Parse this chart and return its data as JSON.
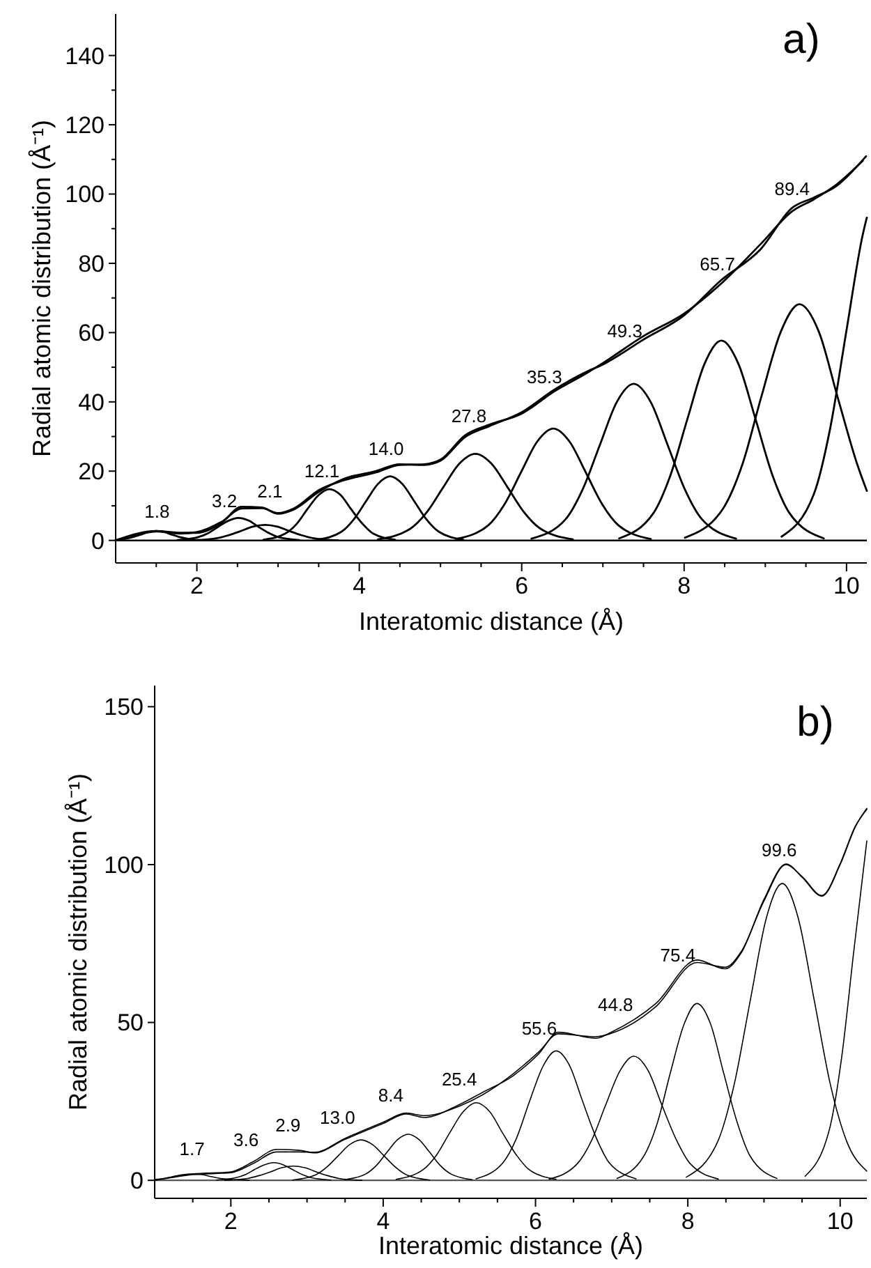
{
  "chart_data": [
    {
      "type": "line",
      "title": "a)",
      "xlabel": "Interatomic distance (Å)",
      "ylabel": "Radial atomic distribution (Å⁻¹)",
      "xlim": [
        1.0,
        10.25
      ],
      "ylim": [
        -6.5,
        152
      ],
      "xticks": [
        {
          "value": 1.5,
          "label": null
        },
        2,
        {
          "value": 2.5,
          "label": null
        },
        {
          "value": 3,
          "label": null
        },
        {
          "value": 3.5,
          "label": null
        },
        4,
        {
          "value": 4.5,
          "label": null
        },
        {
          "value": 5,
          "label": null
        },
        {
          "value": 5.5,
          "label": null
        },
        6,
        {
          "value": 6.5,
          "label": null
        },
        {
          "value": 7,
          "label": null
        },
        {
          "value": 7.5,
          "label": null
        },
        8,
        {
          "value": 8.5,
          "label": null
        },
        {
          "value": 9,
          "label": null
        },
        {
          "value": 9.5,
          "label": null
        },
        10
      ],
      "yticks": [
        0,
        {
          "value": 10,
          "label": null
        },
        20,
        {
          "value": 30,
          "label": null
        },
        40,
        {
          "value": 50,
          "label": null
        },
        60,
        {
          "value": 70,
          "label": null
        },
        80,
        {
          "value": 90,
          "label": null
        },
        100,
        {
          "value": 110,
          "label": null
        },
        120,
        {
          "value": 130,
          "label": null
        },
        140
      ],
      "ref_lines": [
        {
          "axis": "y",
          "value": 0,
          "color": "#000000"
        }
      ],
      "series": [
        {
          "color": "#000000",
          "x": [
            1.0,
            1.5,
            1.8,
            2.0,
            2.3,
            2.55,
            2.8,
            3.0,
            3.2,
            3.5,
            3.8,
            4.2,
            4.5,
            4.8,
            5.0,
            5.3,
            5.6,
            6.0,
            6.4,
            6.8,
            7.0,
            7.5,
            8.0,
            8.45,
            8.94,
            9.33,
            9.6,
            9.88,
            10.24
          ],
          "values": [
            0,
            2.7,
            2.2,
            2.2,
            5,
            9.7,
            9.5,
            7.7,
            9,
            14,
            17.7,
            20,
            22,
            21.8,
            23,
            29.8,
            33,
            37,
            43.5,
            48.7,
            50.8,
            58,
            65,
            75,
            84,
            96,
            99,
            102.4,
            110.9
          ]
        },
        {
          "color": "#000000",
          "x": [
            1.2,
            1.5,
            1.8,
            2.0,
            2.3,
            2.55,
            2.8,
            3.0,
            3.2,
            3.5,
            3.8,
            4.2,
            4.5,
            4.8,
            5.0,
            5.3,
            5.6,
            6.0,
            6.4,
            6.8,
            7.0,
            7.5,
            8.0,
            8.45,
            8.94,
            9.33,
            9.6,
            9.88,
            10.2
          ],
          "values": [
            1.2,
            2.6,
            2.0,
            2.4,
            5.3,
            9.2,
            9.3,
            7.9,
            9.3,
            14.5,
            17.3,
            19.6,
            21.8,
            22.0,
            23.3,
            30.3,
            33.4,
            36.6,
            43.0,
            48.3,
            51.2,
            59.0,
            65.5,
            74.0,
            85.5,
            95.0,
            98.5,
            102.8,
            109.6
          ]
        },
        {
          "color": "#000000",
          "x": [
            1.0,
            1.1,
            1.2,
            1.3,
            1.4,
            1.5,
            1.6,
            1.7,
            1.8,
            1.9,
            2.1
          ],
          "values": [
            0.1,
            0.4,
            0.9,
            1.6,
            2.4,
            2.7,
            2.4,
            1.6,
            0.9,
            0.4,
            0.0
          ]
        },
        {
          "color": "#000000",
          "x": [
            1.76,
            2.01,
            2.14,
            2.26,
            2.39,
            2.51,
            2.64,
            2.76,
            2.89,
            3.01,
            3.26
          ],
          "values": [
            0.1,
            0.9,
            2.1,
            3.9,
            5.7,
            6.5,
            5.7,
            3.9,
            2.1,
            0.9,
            0.1
          ]
        },
        {
          "color": "#000000",
          "x": [
            1.94,
            2.24,
            2.39,
            2.54,
            2.69,
            2.84,
            2.99,
            3.14,
            3.29,
            3.44,
            3.74
          ],
          "values": [
            0.0,
            0.6,
            1.5,
            2.7,
            4.0,
            4.5,
            4.0,
            2.7,
            1.5,
            0.6,
            0.0
          ]
        },
        {
          "color": "#000000",
          "x": [
            2.82,
            3.09,
            3.23,
            3.36,
            3.5,
            3.63,
            3.77,
            3.9,
            4.04,
            4.17,
            4.44
          ],
          "values": [
            0.2,
            2.0,
            4.8,
            9.0,
            13.1,
            14.8,
            13.1,
            9.0,
            4.8,
            2.0,
            0.2
          ]
        },
        {
          "color": "#000000",
          "x": [
            3.48,
            3.78,
            3.93,
            4.08,
            4.23,
            4.38,
            4.53,
            4.68,
            4.83,
            4.98,
            5.28
          ],
          "values": [
            0.2,
            2.5,
            6.0,
            11.2,
            16.3,
            18.5,
            16.3,
            11.2,
            6.0,
            2.5,
            0.2
          ]
        },
        {
          "color": "#000000",
          "x": [
            4.23,
            4.63,
            4.83,
            5.03,
            5.23,
            5.43,
            5.63,
            5.83,
            6.03,
            6.23,
            6.63
          ],
          "values": [
            0.3,
            3.4,
            8.1,
            15.2,
            22.1,
            25,
            22.1,
            15.2,
            8.1,
            3.4,
            0.3
          ]
        },
        {
          "color": "#000000",
          "x": [
            5.19,
            5.59,
            5.79,
            5.99,
            6.19,
            6.39,
            6.59,
            6.79,
            6.99,
            7.19,
            7.59
          ],
          "values": [
            0.4,
            4.4,
            10.5,
            19.6,
            28.5,
            32.3,
            28.5,
            19.6,
            10.5,
            4.4,
            0.4
          ]
        },
        {
          "color": "#000000",
          "x": [
            6.12,
            6.54,
            6.75,
            6.96,
            7.17,
            7.38,
            7.59,
            7.8,
            8.01,
            8.22,
            8.64
          ],
          "values": [
            0.5,
            6.1,
            14.7,
            27.4,
            39.9,
            45.2,
            39.9,
            27.4,
            14.7,
            6.1,
            0.5
          ]
        },
        {
          "color": "#000000",
          "x": [
            7.2,
            7.62,
            7.83,
            8.04,
            8.25,
            8.46,
            8.67,
            8.88,
            9.09,
            9.3,
            9.72
          ],
          "values": [
            0.6,
            7.8,
            18.7,
            35.0,
            50.9,
            57.7,
            50.9,
            35.0,
            18.7,
            7.8,
            0.6
          ]
        },
        {
          "color": "#000000",
          "x": [
            8.01,
            8.48,
            8.72,
            8.95,
            9.19,
            9.42,
            9.66,
            9.89,
            10.13,
            10.25
          ],
          "values": [
            0.8,
            9.2,
            22.1,
            41.4,
            60.2,
            68.2,
            60.2,
            41.4,
            22.1,
            14.3
          ]
        },
        {
          "color": "#000000",
          "x": [
            9.2,
            9.6,
            9.8,
            10.0,
            10.2,
            10.25
          ],
          "values": [
            1.1,
            13.5,
            32.5,
            60.7,
            88.3,
            93.2
          ]
        }
      ],
      "annotations": [
        {
          "text": "1.8",
          "x": 1.51,
          "y": 2.7
        },
        {
          "text": "3.2",
          "x": 2.34,
          "y": 5.75
        },
        {
          "text": "2.1",
          "x": 2.9,
          "y": 8.6
        },
        {
          "text": "12.1",
          "x": 3.54,
          "y": 14.5
        },
        {
          "text": "14.0",
          "x": 4.33,
          "y": 20.9
        },
        {
          "text": "27.8",
          "x": 5.35,
          "y": 30.3
        },
        {
          "text": "35.3",
          "x": 6.28,
          "y": 41.6
        },
        {
          "text": "49.3",
          "x": 7.27,
          "y": 54.8
        },
        {
          "text": "65.7",
          "x": 8.41,
          "y": 74.1
        },
        {
          "text": "89.4",
          "x": 9.33,
          "y": 96
        }
      ]
    },
    {
      "type": "line",
      "title": "b)",
      "xlabel": "Interatomic distance (Å)",
      "ylabel": "Radial atomic distribution (Å⁻¹)",
      "xlim": [
        1.0,
        10.35
      ],
      "ylim": [
        -5.7,
        156.7
      ],
      "xticks": [
        {
          "value": 1.5,
          "label": null
        },
        2,
        {
          "value": 2.5,
          "label": null
        },
        {
          "value": 3,
          "label": null
        },
        {
          "value": 3.5,
          "label": null
        },
        4,
        {
          "value": 4.5,
          "label": null
        },
        {
          "value": 5,
          "label": null
        },
        {
          "value": 5.5,
          "label": null
        },
        6,
        {
          "value": 6.5,
          "label": null
        },
        {
          "value": 7,
          "label": null
        },
        {
          "value": 7.5,
          "label": null
        },
        8,
        {
          "value": 8.5,
          "label": null
        },
        {
          "value": 9,
          "label": null
        },
        {
          "value": 9.5,
          "label": null
        },
        10
      ],
      "yticks": [
        0,
        50,
        100,
        150
      ],
      "ref_lines": [
        {
          "axis": "y",
          "value": 0,
          "color": "#555555"
        }
      ],
      "series": [
        {
          "color": "#000000",
          "x": [
            1.0,
            1.5,
            2.0,
            2.3,
            2.6,
            2.9,
            3.1,
            3.5,
            4.0,
            4.3,
            4.54,
            5.0,
            5.3,
            5.7,
            6.04,
            6.3,
            6.8,
            7.0,
            7.58,
            8.12,
            8.49,
            8.7,
            9.0,
            9.29,
            9.5,
            9.76,
            10.0,
            10.2,
            10.35
          ],
          "values": [
            0,
            2,
            2.7,
            6,
            9.8,
            9.5,
            8.7,
            13,
            18,
            21,
            19.9,
            24,
            27.8,
            33,
            40,
            46.9,
            45,
            47,
            56,
            69.8,
            67,
            72,
            89,
            100.2,
            96,
            90,
            100,
            112,
            117.8
          ]
        },
        {
          "color": "#000000",
          "x": [
            1.0,
            1.5,
            2.0,
            2.3,
            2.6,
            2.9,
            3.1,
            3.5,
            4.0,
            4.3,
            4.54,
            5.0,
            5.3,
            5.7,
            6.04,
            6.3,
            6.8,
            7.0,
            7.58,
            8.12,
            8.49,
            8.7,
            9.0,
            9.29,
            9.5,
            9.76,
            10.0,
            10.2,
            10.35
          ],
          "values": [
            0,
            1.8,
            2.4,
            5.4,
            9.0,
            9.0,
            8.9,
            13.3,
            18.4,
            21.3,
            20.5,
            23.5,
            27.0,
            33.6,
            40.6,
            46.4,
            45.5,
            46.6,
            55,
            69,
            67.5,
            72.4,
            88.5,
            100,
            96.2,
            90.2,
            100.3,
            112.2,
            117.5
          ]
        },
        {
          "color": "#000000",
          "x": [
            1.0,
            1.12,
            1.24,
            1.37,
            1.49,
            1.62,
            1.74,
            1.87,
            1.99,
            2.24
          ],
          "values": [
            0.3,
            0.6,
            1.2,
            1.8,
            2,
            1.8,
            1.2,
            0.6,
            0.3,
            0.0
          ]
        },
        {
          "color": "#000000",
          "x": [
            1.81,
            2.06,
            2.19,
            2.31,
            2.44,
            2.56,
            2.69,
            2.81,
            2.94,
            3.06,
            3.31
          ],
          "values": [
            0.1,
            0.8,
            1.8,
            3.4,
            4.9,
            5.6,
            4.9,
            3.4,
            1.8,
            0.8,
            0.1
          ]
        },
        {
          "color": "#000000",
          "x": [
            1.92,
            2.22,
            2.37,
            2.52,
            2.67,
            2.82,
            2.97,
            3.12,
            3.27,
            3.42,
            3.72
          ],
          "values": [
            0.0,
            0.6,
            1.5,
            2.7,
            4.0,
            4.5,
            4.0,
            2.7,
            1.5,
            0.6,
            0.0
          ]
        },
        {
          "color": "#000000",
          "x": [
            2.81,
            3.11,
            3.26,
            3.41,
            3.56,
            3.71,
            3.86,
            4.01,
            4.16,
            4.31,
            4.61
          ],
          "values": [
            0.1,
            1.7,
            4.2,
            7.8,
            11.3,
            12.8,
            11.3,
            7.8,
            4.2,
            1.7,
            0.1
          ]
        },
        {
          "color": "#000000",
          "x": [
            3.49,
            3.77,
            3.91,
            4.05,
            4.19,
            4.33,
            4.47,
            4.61,
            4.75,
            4.89,
            5.17
          ],
          "values": [
            0.2,
            2.0,
            4.7,
            8.9,
            12.9,
            14.6,
            12.9,
            8.9,
            4.7,
            2.0,
            0.2
          ]
        },
        {
          "color": "#000000",
          "x": [
            4.17,
            4.52,
            4.7,
            4.87,
            5.05,
            5.22,
            5.4,
            5.57,
            5.75,
            5.92,
            6.27
          ],
          "values": [
            0.3,
            3.3,
            8.0,
            14.9,
            21.7,
            24.6,
            21.7,
            14.9,
            8.0,
            3.3,
            0.3
          ]
        },
        {
          "color": "#000000",
          "x": [
            5.22,
            5.57,
            5.75,
            5.92,
            6.1,
            6.27,
            6.45,
            6.62,
            6.8,
            6.97,
            7.32
          ],
          "values": [
            0.5,
            5.5,
            13.3,
            24.9,
            36.2,
            41,
            36.2,
            24.9,
            13.3,
            5.5,
            0.5
          ]
        },
        {
          "color": "#000000",
          "x": [
            6.18,
            6.55,
            6.74,
            6.92,
            7.11,
            7.29,
            7.48,
            7.66,
            7.85,
            8.03,
            8.4
          ],
          "values": [
            0.4,
            5.3,
            12.8,
            23.8,
            34.7,
            39.3,
            34.7,
            23.8,
            12.8,
            5.3,
            0.4
          ]
        },
        {
          "color": "#000000",
          "x": [
            7.07,
            7.42,
            7.6,
            7.77,
            7.95,
            8.12,
            8.3,
            8.47,
            8.65,
            8.82,
            9.17
          ],
          "values": [
            0.6,
            7.6,
            18.2,
            34.0,
            49.4,
            56,
            49.4,
            34.0,
            18.2,
            7.6,
            0.6
          ]
        },
        {
          "color": "#000000",
          "x": [
            7.98,
            8.4,
            8.61,
            8.82,
            9.03,
            9.24,
            9.45,
            9.66,
            9.87,
            10.08,
            10.35
          ],
          "values": [
            1.0,
            12.7,
            30.5,
            57.0,
            83.0,
            94,
            83.0,
            57.0,
            30.5,
            12.7,
            2.9
          ]
        },
        {
          "color": "#000000",
          "x": [
            9.54,
            9.86,
            10.02,
            10.18,
            10.35
          ],
          "values": [
            1.3,
            16.2,
            39.0,
            72.8,
            107.5
          ]
        }
      ],
      "annotations": [
        {
          "text": "1.7",
          "x": 1.49,
          "y": 2
        },
        {
          "text": "3.6",
          "x": 2.2,
          "y": 4.9
        },
        {
          "text": "2.9",
          "x": 2.75,
          "y": 9.65
        },
        {
          "text": "13.0",
          "x": 3.4,
          "y": 11.9
        },
        {
          "text": "8.4",
          "x": 4.1,
          "y": 19
        },
        {
          "text": "25.4",
          "x": 5.0,
          "y": 24
        },
        {
          "text": "55.6",
          "x": 6.05,
          "y": 40.2
        },
        {
          "text": "44.8",
          "x": 7.05,
          "y": 47.8
        },
        {
          "text": "75.4",
          "x": 7.87,
          "y": 63.4
        },
        {
          "text": "99.6",
          "x": 9.2,
          "y": 96.7
        }
      ]
    }
  ]
}
